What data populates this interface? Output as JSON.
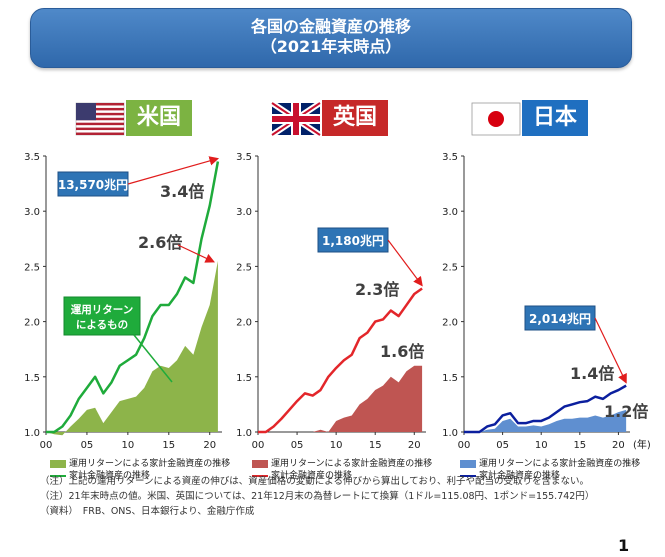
{
  "title": {
    "line1": "各国の金融資産の推移",
    "line2": "（2021年末時点）"
  },
  "colors": {
    "us_line": "#1fab3b",
    "us_area": "#8db44a",
    "uk_line": "#e3262a",
    "uk_area": "#bf5552",
    "jp_line": "#0b1f9e",
    "jp_area": "#5f8fd0",
    "callout": "#2e74b5",
    "note_text": "#404040",
    "arrow": "#e11d1d"
  },
  "chart_data": [
    {
      "type": "area",
      "country": "米国",
      "flag": "us-flag-icon",
      "x": [
        0,
        1,
        2,
        3,
        4,
        5,
        6,
        7,
        8,
        9,
        10,
        11,
        12,
        13,
        14,
        15,
        16,
        17,
        18,
        19,
        20,
        21
      ],
      "xticks": [
        "00",
        "05",
        "10",
        "15",
        "20"
      ],
      "ylim": [
        1.0,
        3.5
      ],
      "yticks": [
        "1.0",
        "1.5",
        "2.0",
        "2.5",
        "3.0",
        "3.5"
      ],
      "series": [
        {
          "name": "運用リターンによる家計金融資産の推移",
          "kind": "area",
          "values": [
            1.0,
            0.98,
            0.97,
            1.05,
            1.12,
            1.2,
            1.22,
            1.08,
            1.18,
            1.28,
            1.3,
            1.32,
            1.4,
            1.55,
            1.6,
            1.58,
            1.65,
            1.78,
            1.7,
            1.95,
            2.15,
            2.55
          ]
        },
        {
          "name": "家計金融資産の推移",
          "kind": "line",
          "values": [
            1.0,
            1.0,
            1.05,
            1.15,
            1.3,
            1.4,
            1.5,
            1.35,
            1.45,
            1.6,
            1.65,
            1.7,
            1.85,
            2.05,
            2.15,
            2.15,
            2.25,
            2.4,
            2.35,
            2.75,
            3.05,
            3.45
          ]
        }
      ],
      "callouts": {
        "total": "13,570兆円",
        "line_mult": "3.4倍",
        "area_mult": "2.6倍",
        "area_label_1": "運用リターン",
        "area_label_2": "によるもの"
      }
    },
    {
      "type": "area",
      "country": "英国",
      "flag": "uk-flag-icon",
      "x": [
        0,
        1,
        2,
        3,
        4,
        5,
        6,
        7,
        8,
        9,
        10,
        11,
        12,
        13,
        14,
        15,
        16,
        17,
        18,
        19,
        20,
        21
      ],
      "xticks": [
        "00",
        "05",
        "10",
        "15",
        "20"
      ],
      "ylim": [
        1.0,
        3.5
      ],
      "yticks": [
        "1.0",
        "1.5",
        "2.0",
        "2.5",
        "3.0",
        "3.5"
      ],
      "series": [
        {
          "name": "運用リターンによる家計金融資産の推移",
          "kind": "area",
          "values": [
            1.0,
            1.0,
            1.0,
            1.0,
            1.0,
            1.0,
            1.0,
            1.0,
            1.02,
            1.0,
            1.1,
            1.13,
            1.15,
            1.25,
            1.3,
            1.38,
            1.42,
            1.5,
            1.45,
            1.55,
            1.6,
            1.6
          ]
        },
        {
          "name": "家計金融資産の推移",
          "kind": "line",
          "values": [
            1.0,
            1.0,
            1.05,
            1.12,
            1.2,
            1.28,
            1.35,
            1.33,
            1.38,
            1.5,
            1.58,
            1.65,
            1.7,
            1.85,
            1.9,
            2.0,
            2.02,
            2.1,
            2.05,
            2.15,
            2.25,
            2.3
          ]
        }
      ],
      "callouts": {
        "total": "1,180兆円",
        "line_mult": "2.3倍",
        "area_mult": "1.6倍"
      }
    },
    {
      "type": "area",
      "country": "日本",
      "flag": "japan-flag-icon",
      "x": [
        0,
        1,
        2,
        3,
        4,
        5,
        6,
        7,
        8,
        9,
        10,
        11,
        12,
        13,
        14,
        15,
        16,
        17,
        18,
        19,
        20,
        21
      ],
      "xticks": [
        "00",
        "05",
        "10",
        "15",
        "20"
      ],
      "xunit": "(年)",
      "ylim": [
        1.0,
        3.5
      ],
      "yticks": [
        "1.0",
        "1.5",
        "2.0",
        "2.5",
        "3.0",
        "3.5"
      ],
      "series": [
        {
          "name": "運用リターンによる家計金融資産の推移",
          "kind": "area",
          "values": [
            1.0,
            1.0,
            1.0,
            1.02,
            1.03,
            1.1,
            1.12,
            1.05,
            1.05,
            1.06,
            1.05,
            1.07,
            1.1,
            1.12,
            1.12,
            1.13,
            1.13,
            1.15,
            1.13,
            1.15,
            1.18,
            1.2
          ]
        },
        {
          "name": "家計金融資産の推移",
          "kind": "line",
          "values": [
            1.0,
            1.0,
            1.0,
            1.05,
            1.07,
            1.15,
            1.17,
            1.08,
            1.08,
            1.1,
            1.1,
            1.13,
            1.18,
            1.23,
            1.25,
            1.27,
            1.28,
            1.32,
            1.3,
            1.35,
            1.38,
            1.42
          ]
        }
      ],
      "callouts": {
        "total": "2,014兆円",
        "line_mult": "1.4倍",
        "area_mult": "1.2倍"
      }
    }
  ],
  "notes": [
    "（注）上記の運用リターンによる資産の伸びは、資産価格の変動による伸びから算出しており、利子や配当の受取りを含まない。",
    "（注）21年末時点の値。米国、英国については、21年12月末の為替レートにて換算（1ドル=115.08円、1ポンド=155.742円）",
    "（資料）　FRB、ONS、日本銀行より、金融庁作成"
  ],
  "page_number": "1"
}
